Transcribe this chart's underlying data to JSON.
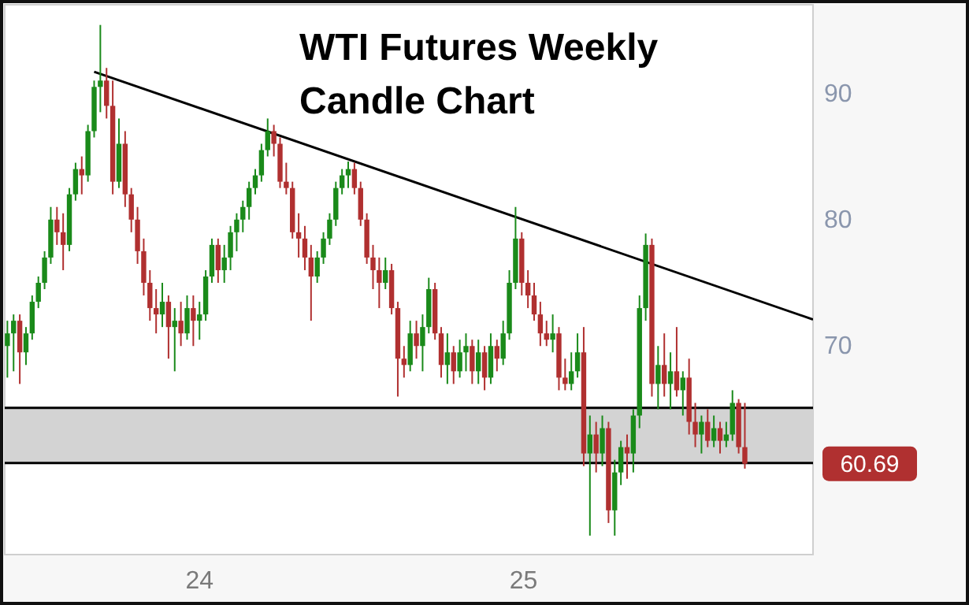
{
  "chart_data": {
    "type": "candlestick",
    "title": "WTI Futures Weekly Candle Chart",
    "xlim": [
      "2023-05-26",
      "2025-11-24"
    ],
    "ylim": [
      53.5,
      97
    ],
    "xticks": [
      {
        "value": "2024-01-01",
        "label": "24"
      },
      {
        "value": "2025-01-01",
        "label": "25"
      }
    ],
    "yticks": [
      70,
      80,
      90
    ],
    "grid": false,
    "x": [
      "2023-05-29",
      "2023-06-05",
      "2023-06-12",
      "2023-06-19",
      "2023-06-26",
      "2023-07-03",
      "2023-07-10",
      "2023-07-17",
      "2023-07-24",
      "2023-07-31",
      "2023-08-07",
      "2023-08-14",
      "2023-08-21",
      "2023-08-28",
      "2023-09-04",
      "2023-09-11",
      "2023-09-18",
      "2023-09-25",
      "2023-10-02",
      "2023-10-09",
      "2023-10-16",
      "2023-10-23",
      "2023-10-30",
      "2023-11-06",
      "2023-11-13",
      "2023-11-20",
      "2023-11-27",
      "2023-12-04",
      "2023-12-11",
      "2023-12-18",
      "2023-12-25",
      "2024-01-01",
      "2024-01-08",
      "2024-01-15",
      "2024-01-22",
      "2024-01-29",
      "2024-02-05",
      "2024-02-12",
      "2024-02-19",
      "2024-02-26",
      "2024-03-04",
      "2024-03-11",
      "2024-03-18",
      "2024-03-25",
      "2024-04-01",
      "2024-04-08",
      "2024-04-15",
      "2024-04-22",
      "2024-04-29",
      "2024-05-06",
      "2024-05-13",
      "2024-05-20",
      "2024-05-27",
      "2024-06-03",
      "2024-06-10",
      "2024-06-17",
      "2024-06-24",
      "2024-07-01",
      "2024-07-08",
      "2024-07-15",
      "2024-07-22",
      "2024-07-29",
      "2024-08-05",
      "2024-08-12",
      "2024-08-19",
      "2024-08-26",
      "2024-09-02",
      "2024-09-09",
      "2024-09-16",
      "2024-09-23",
      "2024-09-30",
      "2024-10-07",
      "2024-10-14",
      "2024-10-21",
      "2024-10-28",
      "2024-11-04",
      "2024-11-11",
      "2024-11-18",
      "2024-11-25",
      "2024-12-02",
      "2024-12-09",
      "2024-12-16",
      "2024-12-23",
      "2024-12-30",
      "2025-01-06",
      "2025-01-13",
      "2025-01-20",
      "2025-01-27",
      "2025-02-03",
      "2025-02-10",
      "2025-02-17",
      "2025-02-24",
      "2025-03-03",
      "2025-03-10",
      "2025-03-17",
      "2025-03-24",
      "2025-03-31",
      "2025-04-07",
      "2025-04-14",
      "2025-04-21",
      "2025-04-28",
      "2025-05-05",
      "2025-05-12",
      "2025-05-19",
      "2025-05-26",
      "2025-06-02",
      "2025-06-09",
      "2025-06-16",
      "2025-06-23",
      "2025-06-30",
      "2025-07-07",
      "2025-07-14",
      "2025-07-21",
      "2025-07-28",
      "2025-08-04",
      "2025-08-11",
      "2025-08-18",
      "2025-08-25",
      "2025-09-01",
      "2025-09-08"
    ],
    "ohlc": [
      [
        70,
        72,
        67.5,
        71
      ],
      [
        71,
        72.5,
        68,
        72
      ],
      [
        72,
        72.5,
        67,
        69.5
      ],
      [
        69.5,
        71.5,
        68.5,
        71
      ],
      [
        71,
        74,
        70.5,
        73.5
      ],
      [
        73.5,
        75.5,
        73,
        75
      ],
      [
        75,
        77.5,
        74.5,
        77
      ],
      [
        77,
        81,
        76.5,
        80
      ],
      [
        80,
        81,
        78,
        79
      ],
      [
        79,
        80.5,
        76,
        78
      ],
      [
        78,
        82.5,
        77.5,
        82
      ],
      [
        82,
        84.5,
        81.5,
        84
      ],
      [
        84,
        85,
        82,
        83.5
      ],
      [
        83.5,
        87.5,
        83,
        87
      ],
      [
        87,
        91,
        86.5,
        90.5
      ],
      [
        90.5,
        95.4,
        88.5,
        91
      ],
      [
        91,
        92,
        88,
        89
      ],
      [
        89,
        91,
        82,
        83
      ],
      [
        83,
        88,
        82.5,
        86
      ],
      [
        86,
        87,
        81,
        82
      ],
      [
        82,
        82.5,
        79,
        80
      ],
      [
        80,
        81,
        76.5,
        77.5
      ],
      [
        77.5,
        78.5,
        74,
        75
      ],
      [
        75,
        76,
        72,
        73
      ],
      [
        73,
        74.5,
        71,
        72.5
      ],
      [
        72.5,
        75,
        71.5,
        73.5
      ],
      [
        73.5,
        74,
        69,
        71.5
      ],
      [
        71.5,
        73,
        68,
        72
      ],
      [
        72,
        73.5,
        70,
        71
      ],
      [
        71,
        74,
        70.5,
        73
      ],
      [
        73,
        74,
        70,
        72
      ],
      [
        72,
        73.5,
        70.5,
        72.5
      ],
      [
        72.5,
        76,
        72,
        75.5
      ],
      [
        75.5,
        78.5,
        75,
        78
      ],
      [
        78,
        78.5,
        75,
        76
      ],
      [
        76,
        78,
        75,
        77
      ],
      [
        77,
        79.5,
        76,
        79
      ],
      [
        79,
        80.5,
        77.5,
        80
      ],
      [
        80,
        81.5,
        79,
        81
      ],
      [
        81,
        83,
        80,
        82.5
      ],
      [
        82.5,
        84,
        82,
        83.5
      ],
      [
        83.5,
        86,
        83,
        85.5
      ],
      [
        85.5,
        88,
        85,
        87
      ],
      [
        87,
        87.5,
        85,
        86
      ],
      [
        86,
        86.5,
        82.5,
        83
      ],
      [
        83,
        84.5,
        82,
        82.5
      ],
      [
        82.5,
        83,
        78.5,
        79
      ],
      [
        79,
        80.5,
        77,
        78.5
      ],
      [
        78.5,
        79.5,
        76,
        77
      ],
      [
        77,
        78,
        72,
        75.5
      ],
      [
        75.5,
        77.5,
        75,
        77
      ],
      [
        77,
        79,
        76.5,
        78.5
      ],
      [
        78.5,
        80.5,
        78,
        80
      ],
      [
        80,
        83,
        79.5,
        82.5
      ],
      [
        82.5,
        84,
        82,
        83.5
      ],
      [
        83.5,
        84.6,
        82.5,
        84
      ],
      [
        84,
        84.5,
        82,
        82.5
      ],
      [
        82.5,
        83,
        79.5,
        80
      ],
      [
        80,
        80.5,
        76.5,
        77
      ],
      [
        77,
        78,
        74.5,
        76
      ],
      [
        76,
        77,
        73,
        75
      ],
      [
        75,
        77,
        74.5,
        76
      ],
      [
        76,
        76.5,
        72.5,
        73
      ],
      [
        73,
        73.5,
        66,
        69
      ],
      [
        69,
        70,
        67.5,
        68.5
      ],
      [
        68.5,
        72,
        68,
        71
      ],
      [
        71,
        72,
        69,
        70
      ],
      [
        70,
        72.5,
        68,
        71.5
      ],
      [
        71.5,
        75.4,
        71,
        74.5
      ],
      [
        74.5,
        75,
        70.5,
        71
      ],
      [
        71,
        71.5,
        67.5,
        68.5
      ],
      [
        68.5,
        71,
        67,
        69.5
      ],
      [
        69.5,
        70,
        67,
        68
      ],
      [
        68,
        70.5,
        67.5,
        69.5
      ],
      [
        69.5,
        71,
        68,
        70
      ],
      [
        70,
        70.5,
        67,
        68
      ],
      [
        68,
        70.5,
        67,
        69.5
      ],
      [
        69.5,
        70,
        66.5,
        67.5
      ],
      [
        67.5,
        71,
        67,
        70
      ],
      [
        70,
        70.5,
        68,
        69
      ],
      [
        69,
        72,
        68.5,
        71
      ],
      [
        71,
        76,
        70.5,
        75
      ],
      [
        75,
        81,
        74.5,
        78.5
      ],
      [
        78.5,
        79,
        74,
        75
      ],
      [
        75,
        76,
        73,
        74
      ],
      [
        74,
        75,
        72,
        72.5
      ],
      [
        72.5,
        73.5,
        70,
        71
      ],
      [
        71,
        72,
        70,
        70.5
      ],
      [
        70.5,
        72.5,
        69.5,
        71
      ],
      [
        71,
        71.5,
        66.5,
        67.5
      ],
      [
        67.5,
        69,
        66.5,
        67
      ],
      [
        67,
        69.5,
        66.5,
        68
      ],
      [
        68,
        71,
        67.5,
        69.5
      ],
      [
        69.5,
        71.5,
        60.5,
        61.5
      ],
      [
        61.5,
        64.5,
        55,
        63
      ],
      [
        63,
        64,
        60,
        61.5
      ],
      [
        61.5,
        64.5,
        60.5,
        63.5
      ],
      [
        63.5,
        64,
        56,
        57
      ],
      [
        57,
        61,
        55,
        60
      ],
      [
        60,
        62.5,
        59,
        62
      ],
      [
        62,
        63,
        59.5,
        61.5
      ],
      [
        61.5,
        65,
        60,
        64.5
      ],
      [
        64.5,
        74,
        63.5,
        73
      ],
      [
        73,
        78.9,
        72,
        78
      ],
      [
        78,
        78.5,
        66,
        67
      ],
      [
        67,
        70,
        65,
        68.5
      ],
      [
        68.5,
        71,
        66,
        67
      ],
      [
        67,
        69.5,
        65,
        68
      ],
      [
        68,
        71.5,
        66,
        66.5
      ],
      [
        66.5,
        68,
        64.5,
        67.5
      ],
      [
        67.5,
        69,
        63,
        64
      ],
      [
        64,
        65.5,
        62,
        63
      ],
      [
        63,
        64.5,
        61.5,
        64
      ],
      [
        64,
        65,
        62,
        62.5
      ],
      [
        62.5,
        64.5,
        62,
        63.5
      ],
      [
        63.5,
        64,
        61.5,
        62.5
      ],
      [
        62.5,
        64,
        62,
        63
      ],
      [
        63,
        66.5,
        62.5,
        65.5
      ],
      [
        65.5,
        65.8,
        61.5,
        62
      ],
      [
        62,
        65.5,
        60.3,
        60.69
      ]
    ],
    "series": [
      {
        "type": "line",
        "color": "#000000",
        "x": [
          "2023-09-04",
          "2025-11-24"
        ],
        "values": [
          91.7,
          72.1
        ]
      }
    ],
    "bands": [
      {
        "axis": "y",
        "from": 60.75,
        "to": 65.1,
        "color": "#d3d3d3"
      }
    ],
    "ref_lines": [
      {
        "axis": "y",
        "value": 65.1,
        "color": "#000000"
      },
      {
        "axis": "y",
        "value": 60.75,
        "color": "#000000"
      }
    ],
    "annotations": [
      "60.69"
    ]
  }
}
